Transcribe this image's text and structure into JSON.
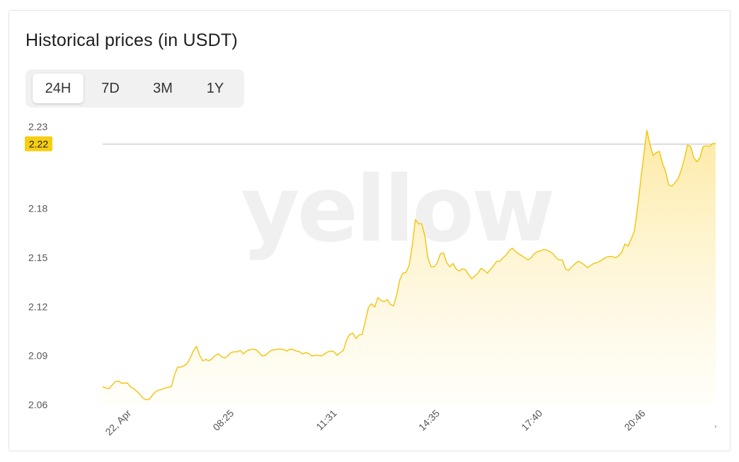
{
  "title": "Historical prices (in USDT)",
  "tabs": [
    {
      "label": "24H",
      "active": true
    },
    {
      "label": "7D",
      "active": false
    },
    {
      "label": "3M",
      "active": false
    },
    {
      "label": "1Y",
      "active": false
    }
  ],
  "colors": {
    "line": "#f2c40a",
    "fill_top": "#fde9a0",
    "badge": "#f7cf12",
    "reference_line": "#bdbdbd"
  },
  "watermark": "yellow",
  "chart_data": {
    "type": "area",
    "y_ticks": [
      "2.23",
      "2.18",
      "2.15",
      "2.12",
      "2.09",
      "2.06"
    ],
    "x_tick_labels": [
      "22, Apr",
      "08:25",
      "11:31",
      "14:35",
      "17:40",
      "20:46"
    ],
    "current_price_label": "2.22",
    "current_price": 2.2193,
    "ylim": [
      2.06,
      2.23
    ],
    "legend": "none",
    "grid": false,
    "values": [
      2.0711,
      2.0702,
      2.0698,
      2.0719,
      2.074,
      2.0745,
      2.0732,
      2.0732,
      2.0732,
      2.0707,
      2.0698,
      2.0681,
      2.066,
      2.0639,
      2.063,
      2.0634,
      2.066,
      2.0681,
      2.069,
      2.0694,
      2.0702,
      2.0707,
      2.0711,
      2.0783,
      2.083,
      2.083,
      2.0838,
      2.0851,
      2.0885,
      2.0928,
      2.0957,
      2.0902,
      2.0868,
      2.0877,
      2.0868,
      2.0881,
      2.0902,
      2.0911,
      2.0894,
      2.0885,
      2.0898,
      2.0919,
      2.0923,
      2.0923,
      2.0932,
      2.0911,
      2.0928,
      2.0936,
      2.094,
      2.0936,
      2.0919,
      2.0898,
      2.0902,
      2.0919,
      2.0932,
      2.0936,
      2.094,
      2.094,
      2.0936,
      2.0928,
      2.094,
      2.0936,
      2.0928,
      2.0923,
      2.0911,
      2.0919,
      2.0911,
      2.0898,
      2.0902,
      2.0902,
      2.0898,
      2.0911,
      2.0923,
      2.0928,
      2.0923,
      2.0902,
      2.0919,
      2.0932,
      2.0996,
      2.103,
      2.1038,
      2.1004,
      2.1026,
      2.103,
      2.1111,
      2.1196,
      2.1217,
      2.1196,
      2.1255,
      2.1238,
      2.123,
      2.1243,
      2.1213,
      2.1204,
      2.1268,
      2.1362,
      2.1404,
      2.1409,
      2.1451,
      2.1574,
      2.1732,
      2.1706,
      2.1706,
      2.1634,
      2.1498,
      2.1443,
      2.1443,
      2.1468,
      2.1523,
      2.1528,
      2.1468,
      2.1443,
      2.1464,
      2.143,
      2.1417,
      2.143,
      2.1426,
      2.1396,
      2.137,
      2.1387,
      2.1404,
      2.1434,
      2.1421,
      2.1404,
      2.1426,
      2.1451,
      2.1477,
      2.1477,
      2.1498,
      2.1515,
      2.1543,
      2.1557,
      2.1536,
      2.1523,
      2.1511,
      2.1498,
      2.1485,
      2.1498,
      2.1523,
      2.1536,
      2.154,
      2.1549,
      2.1545,
      2.1536,
      2.1523,
      2.1498,
      2.1485,
      2.1485,
      2.143,
      2.1421,
      2.1443,
      2.146,
      2.1477,
      2.1468,
      2.1455,
      2.1438,
      2.1451,
      2.1464,
      2.1468,
      2.1477,
      2.1489,
      2.1502,
      2.1506,
      2.1506,
      2.1498,
      2.1511,
      2.1532,
      2.1583,
      2.157,
      2.1613,
      2.166,
      2.18,
      2.1966,
      2.2124,
      2.2277,
      2.2192,
      2.2124,
      2.2141,
      2.2149,
      2.2077,
      2.2026,
      2.1945,
      2.1936,
      2.1957,
      2.1983,
      2.2034,
      2.2103,
      2.2187,
      2.2179,
      2.2111,
      2.2085,
      2.2111,
      2.2179,
      2.2183,
      2.2179,
      2.2196,
      2.2196
    ]
  }
}
